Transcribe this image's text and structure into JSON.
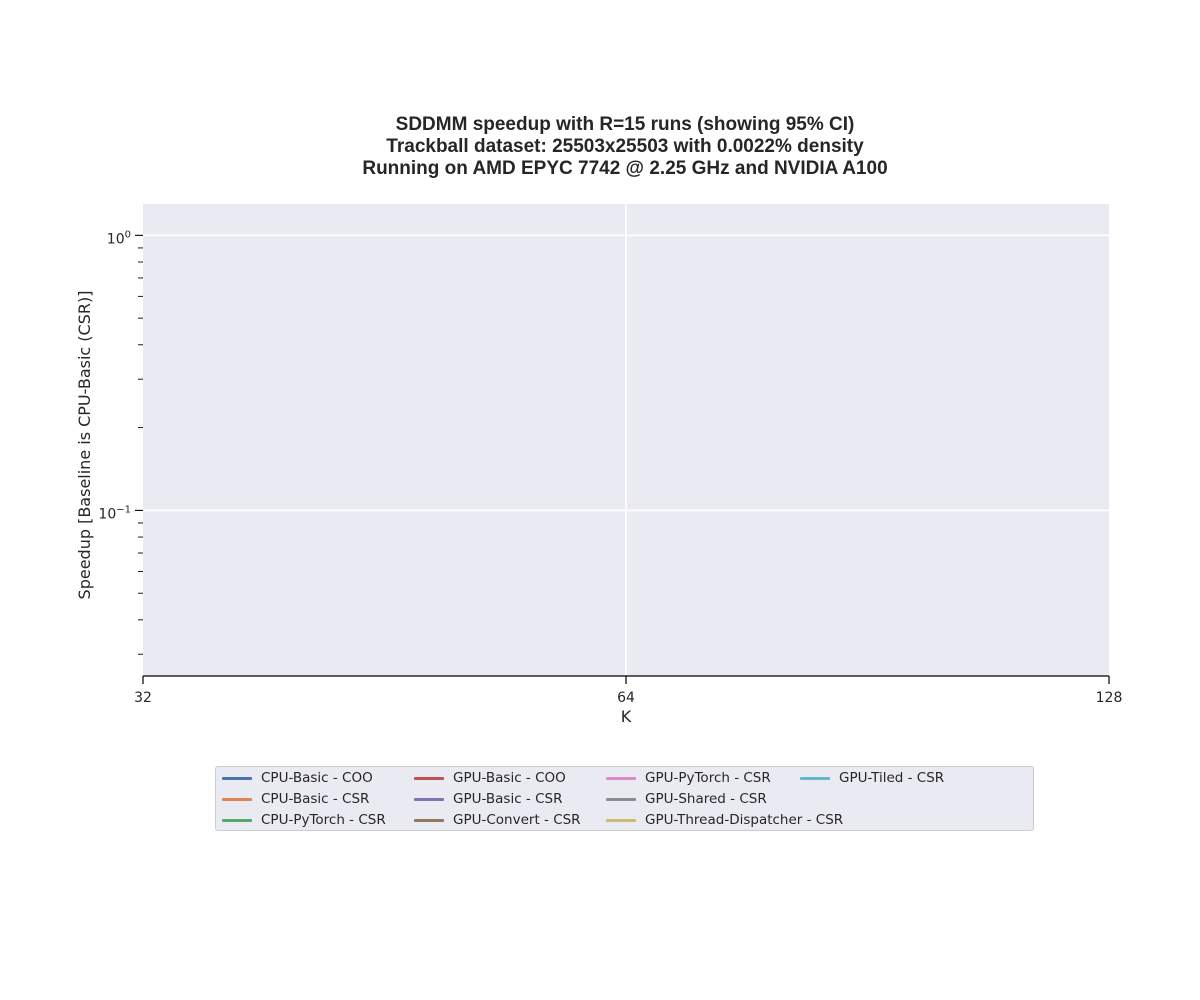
{
  "chart_data": {
    "type": "line",
    "title_lines": [
      "SDDMM speedup with R=15 runs (showing 95% CI)",
      "Trackball dataset: 25503x25503 with 0.0022% density",
      "Running on AMD EPYC 7742 @ 2.25 GHz and NVIDIA A100"
    ],
    "xlabel": "K",
    "ylabel": "Speedup [Baseline is CPU-Basic (CSR)]",
    "x_scale": "log2",
    "y_scale": "log10",
    "x_ticks": [
      {
        "value": 32,
        "label": "32"
      },
      {
        "value": 64,
        "label": "64"
      },
      {
        "value": 128,
        "label": "128"
      }
    ],
    "y_ticks": [
      {
        "value": 1,
        "base": "10",
        "exp": "0"
      },
      {
        "value": 0.1,
        "base": "10",
        "exp": "−1"
      }
    ],
    "xlim": [
      32,
      128
    ],
    "ylim": [
      0.025,
      1.3
    ],
    "grid": true,
    "background": "#eaeaf2",
    "grid_color": "#ffffff",
    "series": [
      {
        "name": "CPU-Basic - COO",
        "color": "#4c72b0",
        "x": [],
        "values": []
      },
      {
        "name": "CPU-Basic - CSR",
        "color": "#dd8452",
        "x": [],
        "values": []
      },
      {
        "name": "CPU-PyTorch - CSR",
        "color": "#55a868",
        "x": [],
        "values": []
      },
      {
        "name": "GPU-Basic - COO",
        "color": "#c44e52",
        "x": [],
        "values": []
      },
      {
        "name": "GPU-Basic - CSR",
        "color": "#8172b3",
        "x": [],
        "values": []
      },
      {
        "name": "GPU-Convert - CSR",
        "color": "#937860",
        "x": [],
        "values": []
      },
      {
        "name": "GPU-PyTorch - CSR",
        "color": "#da8bc3",
        "x": [],
        "values": []
      },
      {
        "name": "GPU-Shared - CSR",
        "color": "#8c8c8c",
        "x": [],
        "values": []
      },
      {
        "name": "GPU-Thread-Dispatcher - CSR",
        "color": "#ccb974",
        "x": [],
        "values": []
      },
      {
        "name": "GPU-Tiled - CSR",
        "color": "#64b5cd",
        "x": [],
        "values": []
      }
    ],
    "legend": {
      "placement": "bottom-center",
      "columns": 4
    }
  }
}
